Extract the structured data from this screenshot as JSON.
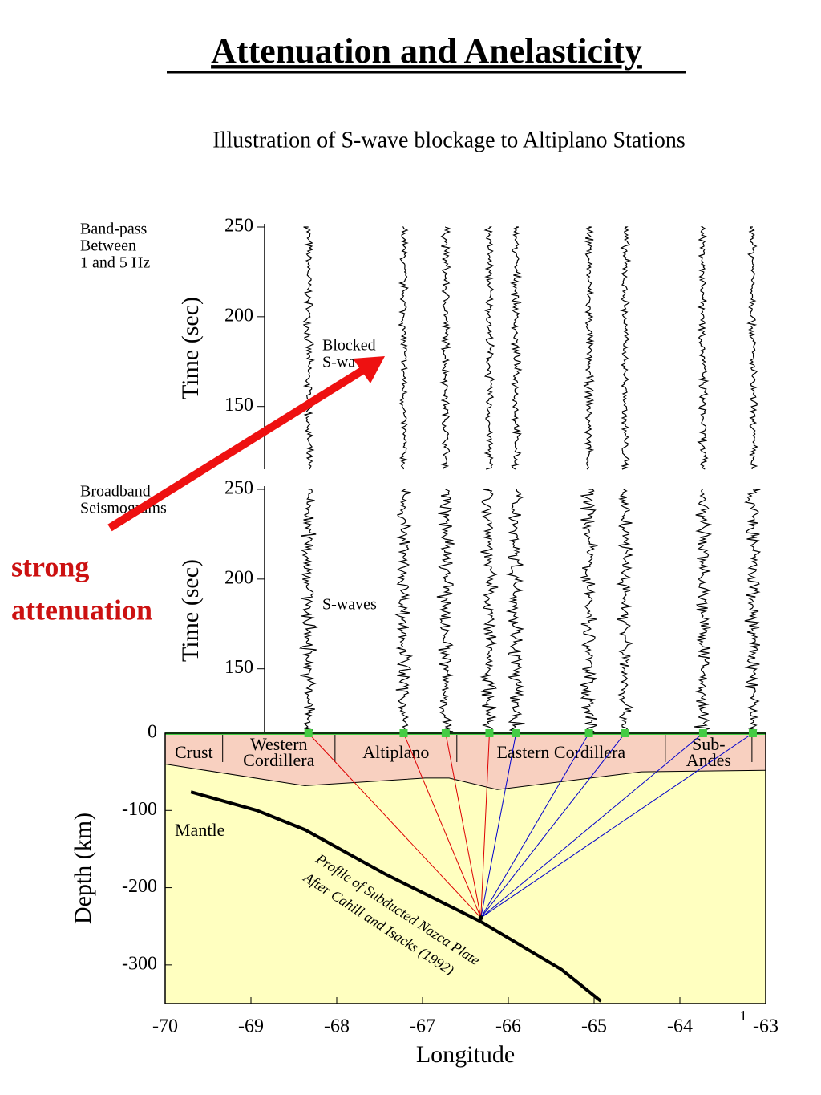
{
  "title": "Attenuation and Anelasticity",
  "annotation": [
    "strong",
    "attenuation"
  ],
  "page_number": "1",
  "chart_data": {
    "type": "seismic-section",
    "title": "Illustration of S-wave blockage to Altiplano Stations",
    "xlabel": "Longitude",
    "xlim": [
      -70,
      -63
    ],
    "xticks": [
      -70,
      -69,
      -68,
      -67,
      -66,
      -65,
      -64,
      -63
    ],
    "panels": [
      {
        "label": [
          "Band-pass",
          "Between",
          "1 and 5 Hz"
        ],
        "ylabel": "Time (sec)",
        "ylim": [
          115,
          250
        ],
        "yticks": [
          150,
          200,
          250
        ],
        "annotation": [
          "Blocked",
          "S-waves"
        ]
      },
      {
        "label": [
          "Broadband",
          "Seismograms"
        ],
        "ylabel": "Time (sec)",
        "ylim": [
          115,
          250
        ],
        "yticks": [
          150,
          200,
          250
        ],
        "annotation": [
          "S-waves"
        ]
      }
    ],
    "depth": {
      "ylabel": "Depth (km)",
      "ylim": [
        -350,
        0
      ],
      "yticks": [
        0,
        -100,
        -200,
        -300
      ],
      "regions": [
        {
          "name": [
            "Crust"
          ],
          "bounds": [
            -70,
            -69.33
          ]
        },
        {
          "name": [
            "Western",
            "Cordillera"
          ],
          "bounds": [
            -69.33,
            -68.02
          ]
        },
        {
          "name": [
            "Altiplano"
          ],
          "bounds": [
            -68.02,
            -66.6
          ]
        },
        {
          "name": [
            "Eastern Cordillera"
          ],
          "bounds": [
            -66.6,
            -64.17
          ]
        },
        {
          "name": [
            "Sub-",
            "Andes"
          ],
          "bounds": [
            -64.17,
            -63.16
          ]
        }
      ],
      "crust_color": "#f8d0c0",
      "mantle_color": "#ffffc0",
      "moho": {
        "x": [
          -70,
          -68.37,
          -66.97,
          -66.69,
          -66.13,
          -64.45,
          -63
        ],
        "y": [
          -40,
          -68,
          -58,
          -58,
          -73,
          -50,
          -48
        ]
      },
      "slab": {
        "x": [
          -69.7,
          -68.93,
          -68.37,
          -67.44,
          -66.32,
          -65.38,
          -64.92
        ],
        "y": [
          -76,
          -100,
          -125,
          -182,
          -244,
          -306,
          -347
        ],
        "label": [
          "Profile of Subducted Nazca Plate",
          "After Cahill and Isacks (1992)"
        ]
      },
      "mantle_label": "Mantle",
      "source": {
        "x": -66.32,
        "y": -239
      }
    },
    "stations": {
      "x": [
        -68.33,
        -67.22,
        -66.73,
        -66.22,
        -65.91,
        -65.06,
        -64.64,
        -63.73,
        -63.15
      ],
      "color": "#44cc44",
      "ray_colors": [
        "#dd0000",
        "#dd0000",
        "#dd0000",
        "#dd0000",
        "#0000cc",
        "#0000cc",
        "#0000cc",
        "#0000cc",
        "#0000cc"
      ]
    }
  }
}
